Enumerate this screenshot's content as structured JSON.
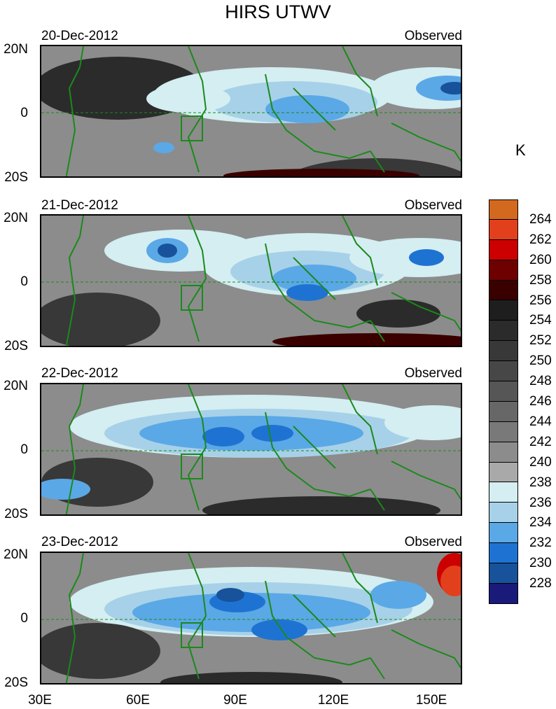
{
  "title": "HIRS UTWV",
  "unit": "K",
  "panels": [
    {
      "date": "20-Dec-2012",
      "label": "Observed"
    },
    {
      "date": "21-Dec-2012",
      "label": "Observed"
    },
    {
      "date": "22-Dec-2012",
      "label": "Observed"
    },
    {
      "date": "23-Dec-2012",
      "label": "Observed"
    }
  ],
  "lat_labels": [
    "20N",
    "0",
    "20S"
  ],
  "lon_labels": [
    "30E",
    "60E",
    "90E",
    "120E",
    "150E"
  ],
  "colorbar": {
    "labels": [
      "264",
      "262",
      "260",
      "258",
      "256",
      "254",
      "252",
      "250",
      "248",
      "246",
      "244",
      "242",
      "240",
      "238",
      "236",
      "234",
      "232",
      "230",
      "228"
    ],
    "colors": [
      "#d2691e",
      "#e2401c",
      "#cc0000",
      "#6e0000",
      "#3a0000",
      "#1e1e1e",
      "#2b2b2b",
      "#383838",
      "#474747",
      "#565656",
      "#676767",
      "#797979",
      "#8c8c8c",
      "#a9a9a9",
      "#d4eef2",
      "#a7d1e8",
      "#5ba8e6",
      "#1e73d2",
      "#17529a",
      "#1a1a7a"
    ]
  },
  "colors": {
    "coast": "#1a8a1a",
    "equator": "#1a8a1a"
  }
}
